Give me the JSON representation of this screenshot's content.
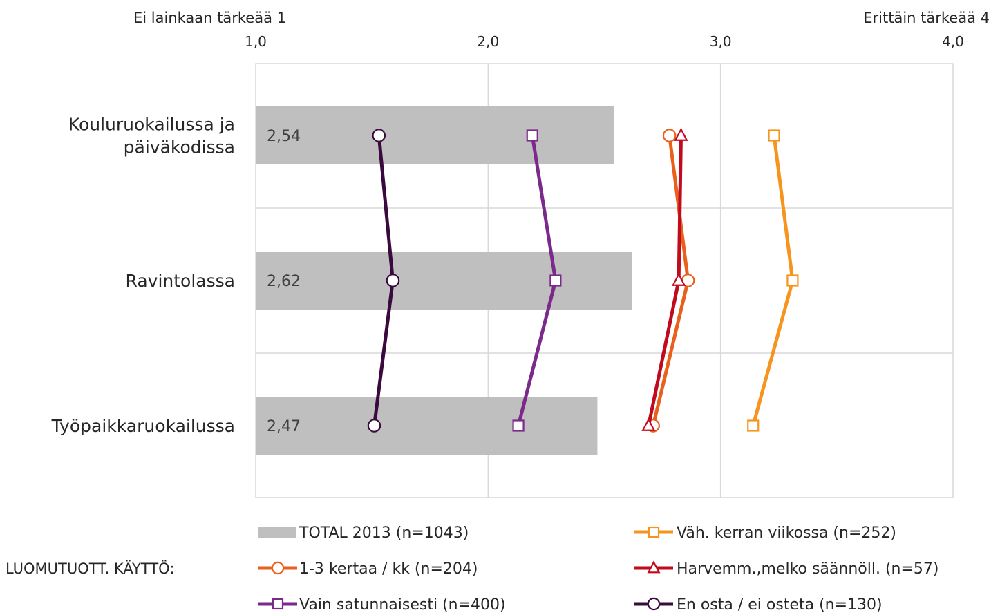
{
  "chart_data": {
    "type": "bar",
    "corner_labels": {
      "left": "Ei lainkaan  tärkeää 1",
      "right": "Erittäin tärkeää 4"
    },
    "x_ticks": [
      "1,0",
      "2,0",
      "3,0",
      "4,0"
    ],
    "xlim": [
      1,
      4
    ],
    "grid": true,
    "categories": [
      "Kouluruokailussa ja päiväkodissa",
      "Ravintolassa",
      "Työpaikkaruokailussa"
    ],
    "category_lines": [
      [
        "Kouluruokailussa ja",
        "päiväkodissa"
      ],
      [
        "Ravintolassa"
      ],
      [
        "Työpaikkaruokailussa"
      ]
    ],
    "bar_series": {
      "name": "TOTAL 2013 (n=1043)",
      "values": [
        2.54,
        2.62,
        2.47
      ],
      "labels": [
        "2,54",
        "2,62",
        "2,47"
      ],
      "color": "#bfbfbf"
    },
    "line_series": [
      {
        "name": "Väh. kerran viikossa (n=252)",
        "values": [
          3.23,
          3.31,
          3.14
        ],
        "color": "#f7941d",
        "marker": "square"
      },
      {
        "name": "1-3 kertaa / kk (n=204)",
        "values": [
          2.78,
          2.86,
          2.71
        ],
        "color": "#e8601c",
        "marker": "circle"
      },
      {
        "name": "Harvemm.,melko säännöll. (n=57)",
        "values": [
          2.83,
          2.82,
          2.69
        ],
        "color": "#c00a1e",
        "marker": "triangle"
      },
      {
        "name": "Vain satunnaisesti (n=400)",
        "values": [
          2.19,
          2.29,
          2.13
        ],
        "color": "#7b2a8c",
        "marker": "square"
      },
      {
        "name": "En osta / ei osteta (n=130)",
        "values": [
          1.53,
          1.59,
          1.51
        ],
        "color": "#3a0a3e",
        "marker": "circle"
      }
    ],
    "legend_prefix": "LUOMUTUOTT. KÄYTTÖ:",
    "legend_position": "bottom"
  }
}
